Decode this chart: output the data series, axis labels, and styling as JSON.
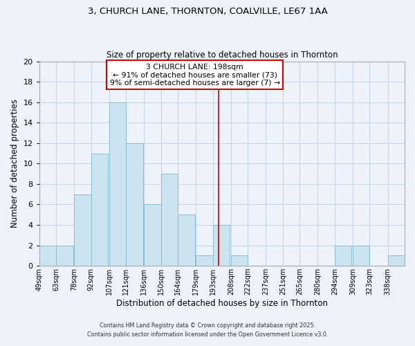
{
  "title1": "3, CHURCH LANE, THORNTON, COALVILLE, LE67 1AA",
  "title2": "Size of property relative to detached houses in Thornton",
  "xlabel": "Distribution of detached houses by size in Thornton",
  "ylabel": "Number of detached properties",
  "footer1": "Contains HM Land Registry data © Crown copyright and database right 2025.",
  "footer2": "Contains public sector information licensed under the Open Government Licence v3.0.",
  "bin_labels": [
    "49sqm",
    "63sqm",
    "78sqm",
    "92sqm",
    "107sqm",
    "121sqm",
    "136sqm",
    "150sqm",
    "164sqm",
    "179sqm",
    "193sqm",
    "208sqm",
    "222sqm",
    "237sqm",
    "251sqm",
    "265sqm",
    "280sqm",
    "294sqm",
    "309sqm",
    "323sqm",
    "338sqm"
  ],
  "bin_edges": [
    49,
    63,
    78,
    92,
    107,
    121,
    136,
    150,
    164,
    179,
    193,
    208,
    222,
    237,
    251,
    265,
    280,
    294,
    309,
    323,
    338
  ],
  "counts": [
    2,
    2,
    7,
    11,
    16,
    12,
    6,
    9,
    5,
    1,
    4,
    1,
    0,
    0,
    0,
    0,
    0,
    2,
    2,
    0,
    1
  ],
  "bar_color": "#cce4f0",
  "bar_edge_color": "#8bbcd4",
  "vline_x": 198,
  "vline_color": "#cc0000",
  "ylim": [
    0,
    20
  ],
  "yticks": [
    0,
    2,
    4,
    6,
    8,
    10,
    12,
    14,
    16,
    18,
    20
  ],
  "annotation_title": "3 CHURCH LANE: 198sqm",
  "annotation_line1": "← 91% of detached houses are smaller (73)",
  "annotation_line2": "9% of semi-detached houses are larger (7) →",
  "annotation_box_color": "#ffffff",
  "annotation_box_edge": "#cc0000",
  "background_color": "#eef2fb"
}
